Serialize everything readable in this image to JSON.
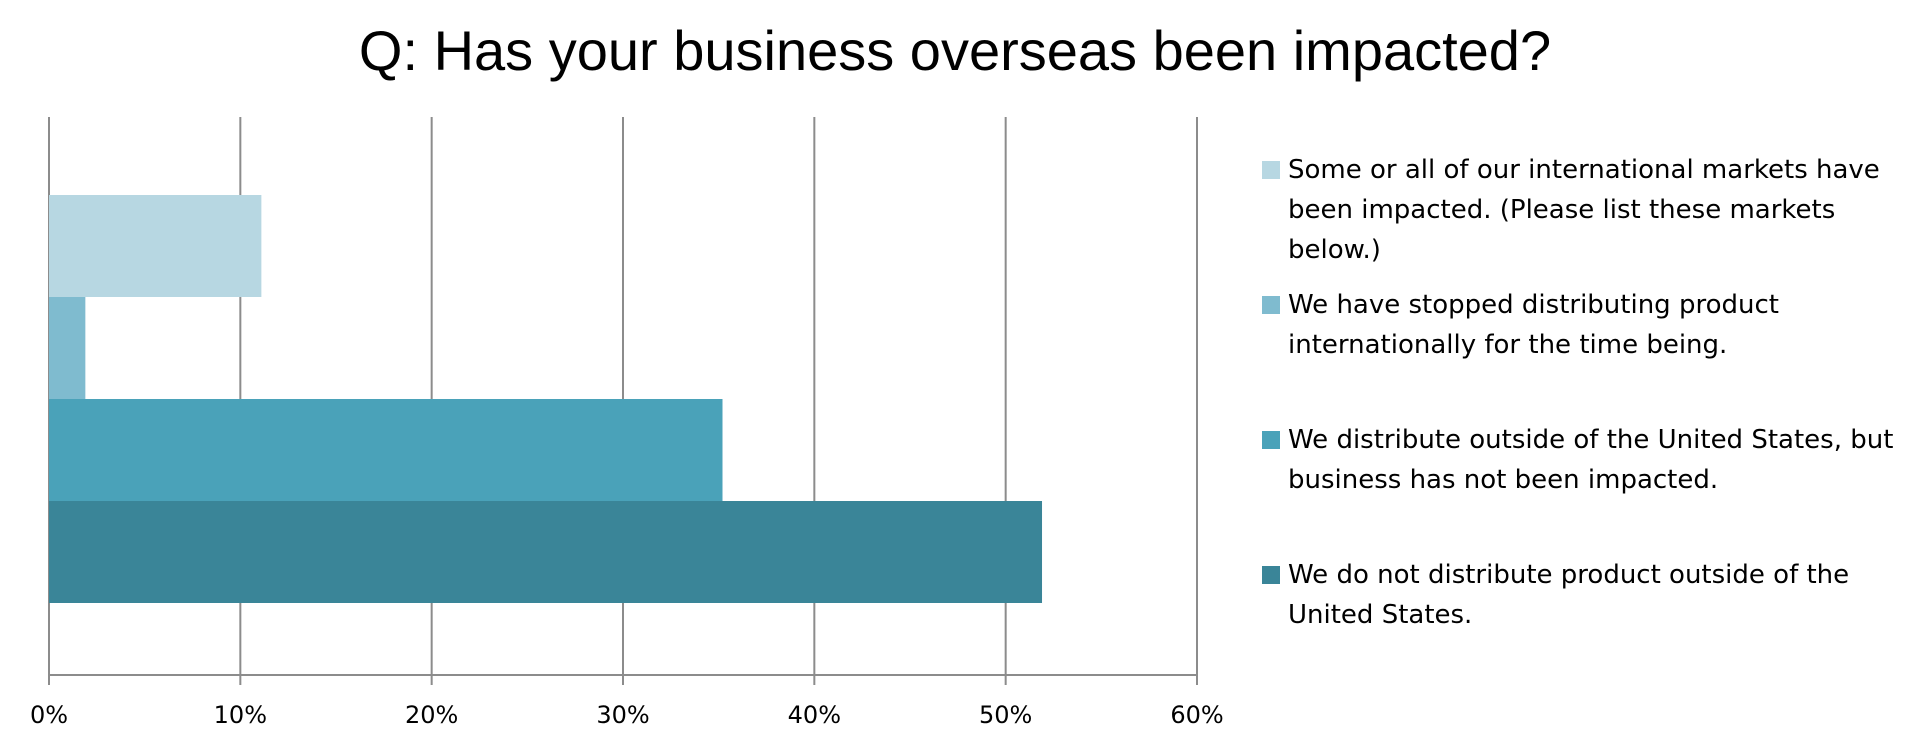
{
  "chart_data": {
    "type": "bar",
    "orientation": "horizontal",
    "title": "Q: Has your business overseas been impacted?",
    "xlabel": "",
    "ylabel": "",
    "xlim": [
      0,
      60
    ],
    "x_ticks": [
      "0%",
      "10%",
      "20%",
      "30%",
      "40%",
      "50%",
      "60%"
    ],
    "grid": "vertical",
    "legend_position": "right",
    "series": [
      {
        "name": "Some or all of our international markets have been impacted. (Please list these markets below.)",
        "value": 11.1,
        "color": "#b7d7e2"
      },
      {
        "name": "We have stopped distributing product internationally for the time being.",
        "value": 1.9,
        "color": "#7fbbcf"
      },
      {
        "name": "We distribute outside of the United States, but business has not been impacted.",
        "value": 35.2,
        "color": "#4aa2b9"
      },
      {
        "name": "We do not distribute product outside of the United States.",
        "value": 51.9,
        "color": "#3a8598"
      }
    ]
  }
}
